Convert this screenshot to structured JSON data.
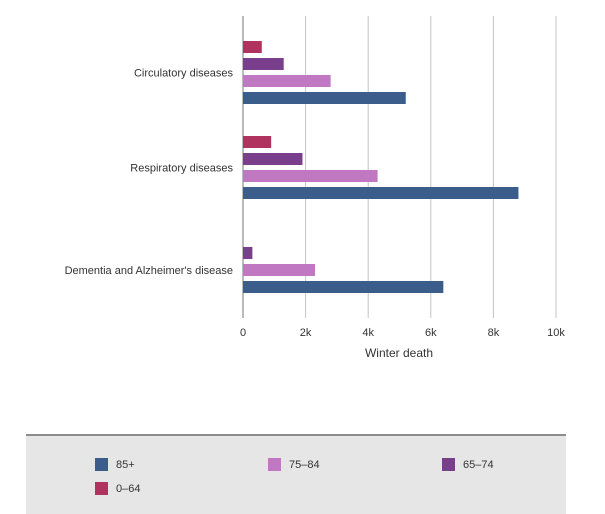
{
  "chart_data": {
    "type": "bar",
    "orientation": "horizontal",
    "categories": [
      "Circulatory diseases",
      "Respiratory diseases",
      "Dementia and Alzheimer's disease"
    ],
    "series": [
      {
        "name": "0–64",
        "color": "#b0325e",
        "values": [
          600,
          900,
          null
        ]
      },
      {
        "name": "65–74",
        "color": "#7a3f8c",
        "values": [
          1300,
          1900,
          300
        ]
      },
      {
        "name": "75–84",
        "color": "#c178c2",
        "values": [
          2800,
          4300,
          2300
        ]
      },
      {
        "name": "85+",
        "color": "#3b5d8c",
        "values": [
          5200,
          8800,
          6400
        ]
      }
    ],
    "xlabel": "Winter death",
    "ylabel": "",
    "xlim": [
      0,
      10000
    ],
    "xticks": [
      0,
      2000,
      4000,
      6000,
      8000,
      10000
    ],
    "xtick_labels": [
      "0",
      "2k",
      "4k",
      "6k",
      "8k",
      "10k"
    ],
    "grid": true,
    "legend": {
      "placement": "bottom",
      "items": [
        {
          "label": "85+",
          "color": "#3b5d8c"
        },
        {
          "label": "75–84",
          "color": "#c178c2"
        },
        {
          "label": "65–74",
          "color": "#7a3f8c"
        },
        {
          "label": "0–64",
          "color": "#b0325e"
        }
      ]
    }
  }
}
